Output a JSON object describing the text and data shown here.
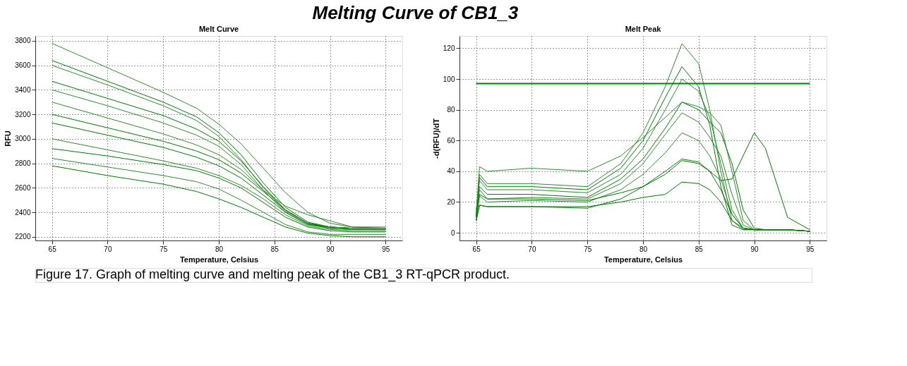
{
  "chart_data": [
    {
      "type": "line",
      "title": "Melt Curve",
      "xlabel": "Temperature, Celsius",
      "ylabel": "RFU",
      "annotations": [
        "Melting Curve of CB1_3"
      ],
      "x": [
        65,
        70,
        75,
        78,
        80,
        82,
        84,
        86,
        88,
        90,
        92,
        95
      ],
      "xlim": [
        63.5,
        96.5
      ],
      "xticks": [
        65,
        70,
        75,
        80,
        85,
        90,
        95
      ],
      "ylim": [
        2170,
        3840
      ],
      "yticks": [
        2200,
        2400,
        2600,
        2800,
        3000,
        3200,
        3400,
        3600,
        3800
      ],
      "grid": true,
      "legend": false,
      "marker": "none",
      "line_style": "solid",
      "series": [
        {
          "color": "#2e8b2e",
          "values": [
            3780,
            3580,
            3380,
            3250,
            3120,
            2960,
            2760,
            2560,
            2400,
            2310,
            2280,
            2280
          ]
        },
        {
          "color": "#007a00",
          "values": [
            3640,
            3470,
            3300,
            3180,
            3050,
            2870,
            2640,
            2440,
            2320,
            2280,
            2270,
            2270
          ]
        },
        {
          "color": "#2e8b2e",
          "values": [
            3600,
            3440,
            3270,
            3150,
            3020,
            2830,
            2600,
            2410,
            2310,
            2280,
            2270,
            2270
          ]
        },
        {
          "color": "#007a00",
          "values": [
            3470,
            3330,
            3190,
            3080,
            2980,
            2820,
            2610,
            2420,
            2310,
            2280,
            2270,
            2270
          ]
        },
        {
          "color": "#2e8b2e",
          "values": [
            3400,
            3270,
            3130,
            3030,
            2940,
            2790,
            2580,
            2400,
            2300,
            2280,
            2270,
            2270
          ]
        },
        {
          "color": "#2e8b2e",
          "values": [
            3300,
            3170,
            3040,
            2950,
            2870,
            2750,
            2580,
            2450,
            2380,
            2330,
            2280,
            2270
          ]
        },
        {
          "color": "#007a00",
          "values": [
            3200,
            3090,
            2980,
            2900,
            2830,
            2720,
            2570,
            2420,
            2310,
            2270,
            2260,
            2260
          ]
        },
        {
          "color": "#007a00",
          "values": [
            3130,
            3030,
            2930,
            2850,
            2780,
            2680,
            2540,
            2400,
            2300,
            2270,
            2260,
            2260
          ]
        },
        {
          "color": "#2e8b2e",
          "values": [
            3000,
            2910,
            2820,
            2760,
            2700,
            2620,
            2510,
            2380,
            2290,
            2260,
            2250,
            2250
          ]
        },
        {
          "color": "#007a00",
          "values": [
            2920,
            2860,
            2790,
            2740,
            2680,
            2600,
            2480,
            2360,
            2280,
            2250,
            2240,
            2240
          ]
        },
        {
          "color": "#2e8b2e",
          "values": [
            2840,
            2770,
            2700,
            2650,
            2590,
            2500,
            2400,
            2300,
            2240,
            2220,
            2220,
            2220
          ]
        },
        {
          "color": "#007a00",
          "values": [
            2780,
            2700,
            2630,
            2570,
            2510,
            2440,
            2360,
            2280,
            2230,
            2210,
            2200,
            2200
          ]
        }
      ]
    },
    {
      "type": "line",
      "title": "Melt Peak",
      "xlabel": "Temperature, Celsius",
      "ylabel": "-d(RFU)/dT",
      "annotations": [
        "Figure 17. Graph of melting curve and melting peak of the CB1_3 RT-qPCR product."
      ],
      "x": [
        65,
        65.3,
        66,
        70,
        75,
        78,
        80,
        82,
        83.5,
        85,
        86,
        87,
        88,
        89,
        90,
        91,
        93,
        95
      ],
      "xlim": [
        63.5,
        96.5
      ],
      "xticks": [
        65,
        70,
        75,
        80,
        85,
        90,
        95
      ],
      "ylim": [
        -5,
        128
      ],
      "yticks": [
        0,
        20,
        40,
        60,
        80,
        100,
        120
      ],
      "grid": true,
      "legend": false,
      "marker": "none",
      "line_style": "solid",
      "ref_lines": [
        {
          "axis": "y",
          "value": 97,
          "color": "#008000"
        }
      ],
      "series": [
        {
          "color": "#2e8b2e",
          "values": [
            10,
            38,
            32,
            32,
            30,
            45,
            65,
            95,
            123,
            110,
            80,
            40,
            8,
            2,
            2,
            2,
            2,
            1
          ]
        },
        {
          "color": "#007a00",
          "values": [
            12,
            36,
            30,
            30,
            28,
            42,
            60,
            88,
            108,
            95,
            70,
            30,
            5,
            2,
            2,
            2,
            2,
            1
          ]
        },
        {
          "color": "#2e8b2e",
          "values": [
            15,
            34,
            28,
            28,
            26,
            38,
            55,
            80,
            100,
            92,
            75,
            45,
            15,
            3,
            2,
            2,
            2,
            1
          ]
        },
        {
          "color": "#007a00",
          "values": [
            10,
            30,
            25,
            25,
            23,
            35,
            48,
            68,
            85,
            80,
            72,
            65,
            45,
            15,
            3,
            2,
            2,
            1
          ]
        },
        {
          "color": "#2e8b2e",
          "values": [
            10,
            28,
            22,
            23,
            22,
            32,
            45,
            64,
            78,
            72,
            62,
            50,
            25,
            5,
            2,
            2,
            2,
            1
          ]
        },
        {
          "color": "#2e8b2e",
          "values": [
            8,
            24,
            20,
            21,
            20,
            28,
            38,
            52,
            65,
            60,
            50,
            35,
            12,
            3,
            2,
            2,
            2,
            1
          ]
        },
        {
          "color": "#007a00",
          "values": [
            10,
            25,
            22,
            22,
            21,
            26,
            30,
            38,
            47,
            45,
            40,
            34,
            35,
            50,
            65,
            55,
            10,
            2
          ]
        },
        {
          "color": "#007a00",
          "values": [
            8,
            18,
            17,
            17,
            17,
            20,
            23,
            25,
            33,
            32,
            28,
            20,
            8,
            3,
            2,
            2,
            2,
            1
          ]
        },
        {
          "color": "#2e8b2e",
          "values": [
            12,
            43,
            40,
            42,
            40,
            50,
            62,
            75,
            85,
            82,
            78,
            70,
            40,
            8,
            2,
            2,
            2,
            1
          ]
        },
        {
          "color": "#007a00",
          "values": [
            8,
            18,
            17,
            17,
            16,
            22,
            30,
            40,
            48,
            46,
            40,
            28,
            12,
            3,
            2,
            2,
            2,
            1
          ]
        }
      ]
    }
  ]
}
